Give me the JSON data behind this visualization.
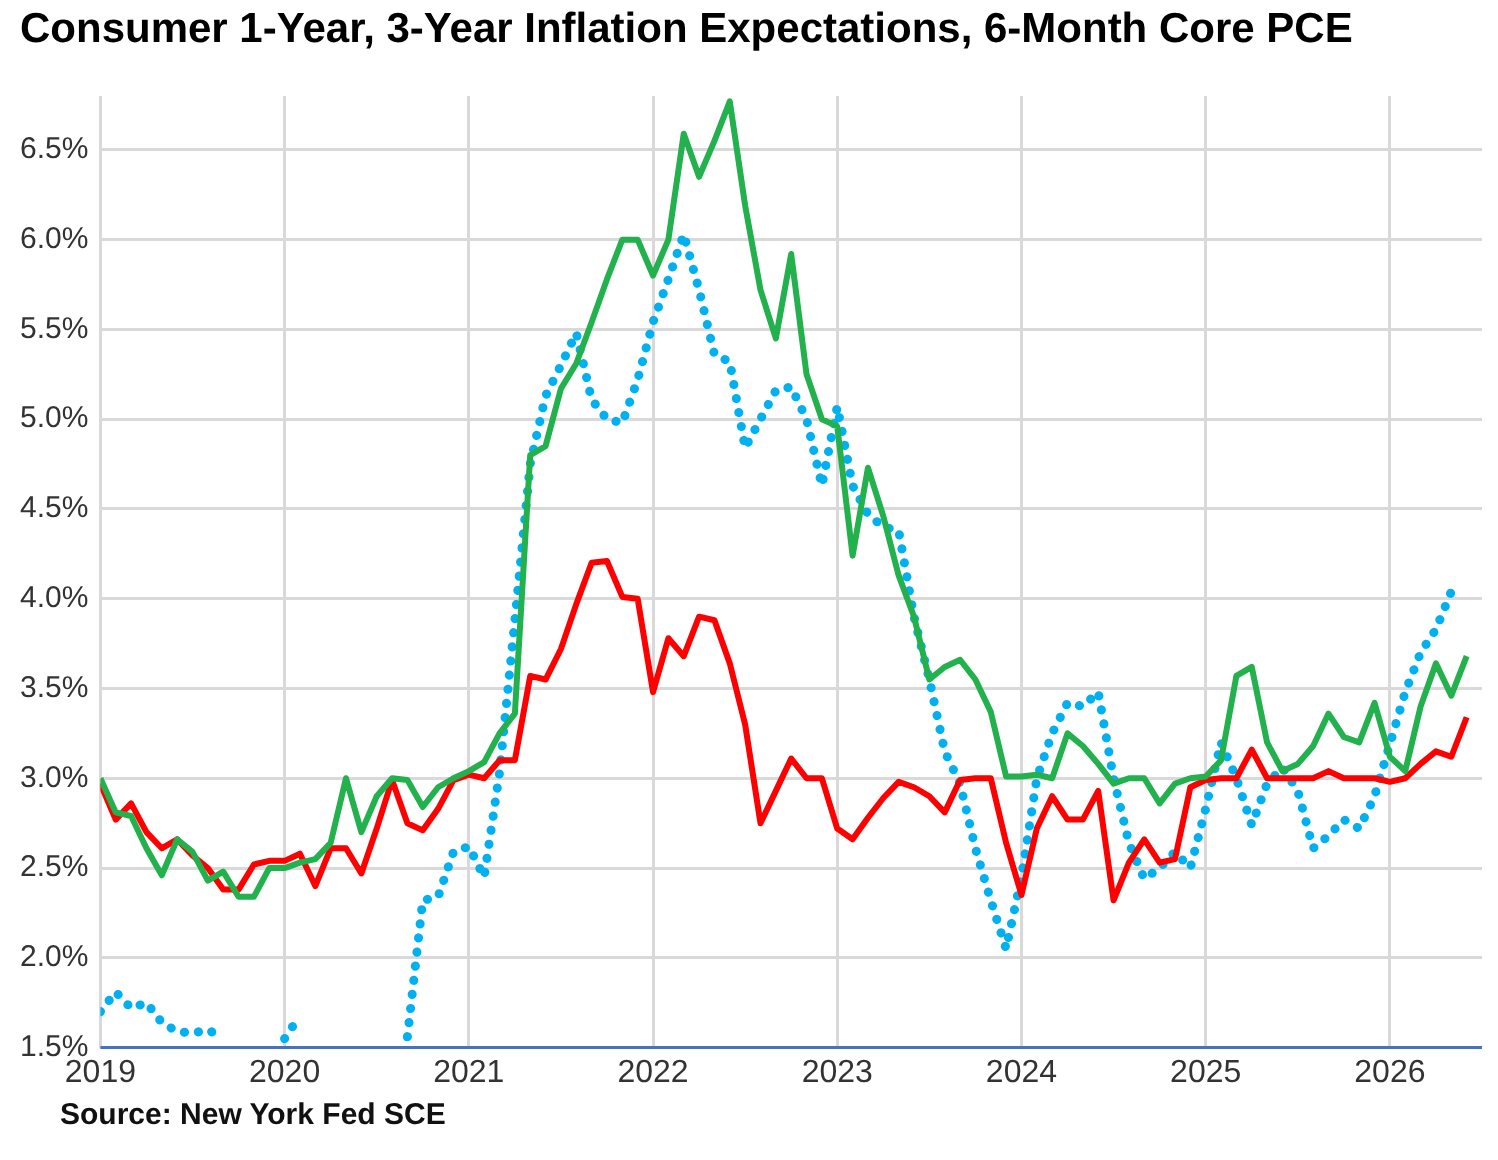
{
  "chart_data": {
    "type": "line",
    "title": "Consumer 1-Year, 3-Year Inflation Expectations, 6-Month Core PCE",
    "annotations": [
      "Source: New York Fed SCE"
    ],
    "x": [
      "2019-01",
      "2019-02",
      "2019-03",
      "2019-04",
      "2019-05",
      "2019-06",
      "2019-07",
      "2019-08",
      "2019-09",
      "2019-10",
      "2019-11",
      "2019-12",
      "2020-01",
      "2020-02",
      "2020-03",
      "2020-04",
      "2020-05",
      "2020-06",
      "2020-07",
      "2020-08",
      "2020-09",
      "2020-10",
      "2020-11",
      "2020-12",
      "2021-01",
      "2021-02",
      "2021-03",
      "2021-04",
      "2021-05",
      "2021-06",
      "2021-07",
      "2021-08",
      "2021-09",
      "2021-10",
      "2021-11",
      "2021-12",
      "2022-01",
      "2022-02",
      "2022-03",
      "2022-04",
      "2022-05",
      "2022-06",
      "2022-07",
      "2022-08",
      "2022-09",
      "2022-10",
      "2022-11",
      "2022-12",
      "2023-01",
      "2023-02",
      "2023-03",
      "2023-04",
      "2023-05",
      "2023-06",
      "2023-07",
      "2023-08",
      "2023-09",
      "2023-10",
      "2023-11",
      "2023-12",
      "2024-01",
      "2024-02",
      "2024-03",
      "2024-04",
      "2024-05",
      "2024-06",
      "2024-07",
      "2024-08",
      "2024-09",
      "2024-10",
      "2024-11",
      "2024-12",
      "2025-01",
      "2025-02",
      "2025-03",
      "2025-04",
      "2025-05",
      "2025-06",
      "2025-07",
      "2025-08",
      "2025-09",
      "2025-10",
      "2025-11",
      "2025-12",
      "2026-01",
      "2026-02",
      "2026-03",
      "2026-04",
      "2026-05",
      "2026-06"
    ],
    "series": [
      {
        "color": "#22b14c",
        "values": [
          3.0,
          2.81,
          2.79,
          2.61,
          2.46,
          2.66,
          2.59,
          2.43,
          2.48,
          2.34,
          2.34,
          2.5,
          2.5,
          2.53,
          2.55,
          2.64,
          3.0,
          2.7,
          2.9,
          3.0,
          2.99,
          2.84,
          2.95,
          3.0,
          3.04,
          3.09,
          3.25,
          3.36,
          4.8,
          4.85,
          5.17,
          5.31,
          5.54,
          5.78,
          6.0,
          6.0,
          5.8,
          6.0,
          6.59,
          6.35,
          6.55,
          6.77,
          6.19,
          5.72,
          5.45,
          5.92,
          5.25,
          5.0,
          4.96,
          4.24,
          4.73,
          4.46,
          4.13,
          3.9,
          3.55,
          3.62,
          3.66,
          3.55,
          3.37,
          3.01,
          3.01,
          3.02,
          3.0,
          3.25,
          3.18,
          3.08,
          2.97,
          3.0,
          3.0,
          2.86,
          2.97,
          3.0,
          3.01,
          3.1,
          3.57,
          3.62,
          3.2,
          3.04,
          3.08,
          3.18,
          3.36,
          3.23,
          3.2,
          3.42,
          3.12,
          3.04,
          3.4,
          3.64,
          3.46,
          3.68
        ]
      },
      {
        "color": "#ff0000",
        "values": [
          2.97,
          2.77,
          2.86,
          2.7,
          2.61,
          2.66,
          2.57,
          2.5,
          2.38,
          2.38,
          2.52,
          2.54,
          2.54,
          2.58,
          2.4,
          2.61,
          2.61,
          2.47,
          2.72,
          2.99,
          2.75,
          2.71,
          2.83,
          2.99,
          3.02,
          3.0,
          3.1,
          3.1,
          3.57,
          3.55,
          3.72,
          3.97,
          4.2,
          4.21,
          4.01,
          4.0,
          3.48,
          3.78,
          3.68,
          3.9,
          3.88,
          3.64,
          3.3,
          2.75,
          2.93,
          3.11,
          3.0,
          3.0,
          2.72,
          2.66,
          2.78,
          2.89,
          2.98,
          2.95,
          2.9,
          2.81,
          2.99,
          3.0,
          3.0,
          2.64,
          2.35,
          2.72,
          2.9,
          2.77,
          2.77,
          2.93,
          2.32,
          2.53,
          2.66,
          2.53,
          2.55,
          2.95,
          2.99,
          3.0,
          3.0,
          3.16,
          3.0,
          3.0,
          3.0,
          3.0,
          3.04,
          3.0,
          3.0,
          3.0,
          2.98,
          3.0,
          3.08,
          3.15,
          3.12,
          3.34
        ]
      },
      {
        "color": "#00b0f0",
        "line_style": "dotted",
        "values": [
          1.7,
          1.81,
          1.72,
          1.75,
          1.64,
          1.59,
          1.58,
          1.6,
          1.55,
          null,
          null,
          null,
          1.55,
          1.68,
          null,
          null,
          null,
          null,
          null,
          null,
          1.56,
          2.32,
          2.34,
          2.59,
          2.62,
          2.45,
          3.03,
          3.88,
          4.75,
          5.13,
          5.3,
          5.48,
          5.11,
          5.0,
          4.98,
          5.22,
          5.54,
          5.78,
          6.03,
          5.72,
          5.36,
          5.32,
          4.84,
          5.0,
          5.16,
          5.18,
          5.0,
          4.63,
          5.07,
          4.63,
          4.47,
          4.4,
          4.38,
          3.9,
          3.55,
          3.15,
          2.97,
          2.61,
          2.32,
          2.05,
          2.45,
          3.0,
          3.25,
          3.42,
          3.4,
          3.48,
          3.0,
          2.64,
          2.44,
          2.5,
          2.59,
          2.5,
          2.83,
          3.2,
          3.0,
          2.74,
          2.97,
          3.06,
          2.93,
          2.61,
          2.68,
          2.77,
          2.72,
          2.9,
          3.19,
          3.48,
          3.7,
          3.83,
          4.04,
          null
        ]
      }
    ],
    "xlim": [
      "2019-01",
      "2026-07"
    ],
    "xticks": [
      "2019",
      "2020",
      "2021",
      "2022",
      "2023",
      "2024",
      "2025",
      "2026"
    ],
    "ylim": [
      1.5,
      6.8
    ],
    "yticks": [
      {
        "value": 1.5,
        "label": "1.5%"
      },
      {
        "value": 2.0,
        "label": "2.0%"
      },
      {
        "value": 2.5,
        "label": "2.5%"
      },
      {
        "value": 3.0,
        "label": "3.0%"
      },
      {
        "value": 3.5,
        "label": "3.5%"
      },
      {
        "value": 4.0,
        "label": "4.0%"
      },
      {
        "value": 4.5,
        "label": "4.5%"
      },
      {
        "value": 5.0,
        "label": "5.0%"
      },
      {
        "value": 5.5,
        "label": "5.5%"
      },
      {
        "value": 6.0,
        "label": "6.0%"
      },
      {
        "value": 6.5,
        "label": "6.5%"
      }
    ],
    "grid": true,
    "legend": false,
    "marker": "none",
    "line_style": "solid"
  }
}
